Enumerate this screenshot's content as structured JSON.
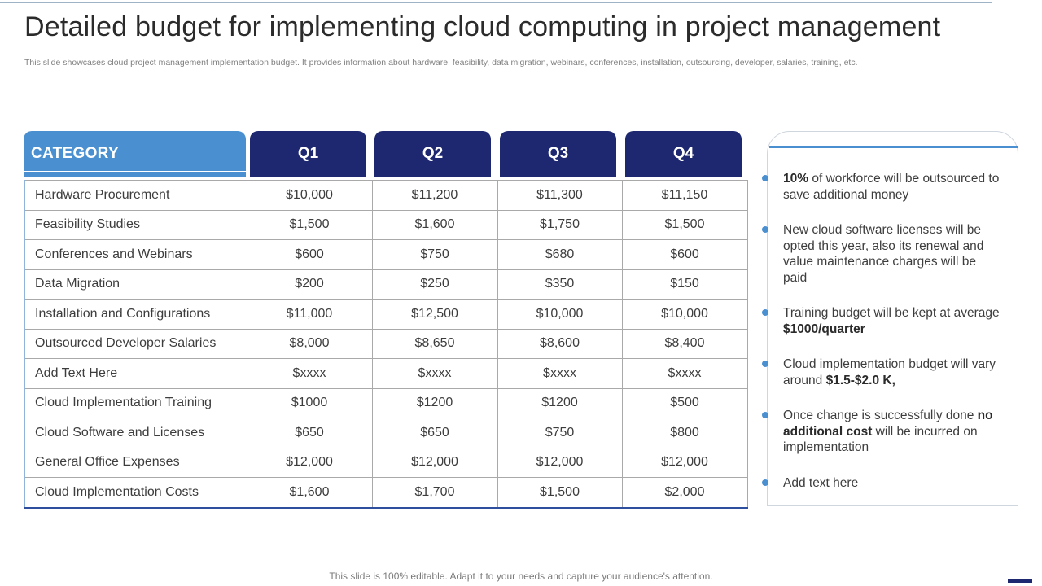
{
  "title": "Detailed budget for implementing cloud computing in project management",
  "subtitle": "This slide showcases cloud project management implementation budget. It provides information about hardware, feasibility, data migration, webinars, conferences, installation, outsourcing, developer, salaries, training, etc.",
  "table": {
    "headers": [
      "CATEGORY",
      "Q1",
      "Q2",
      "Q3",
      "Q4"
    ],
    "rows": [
      [
        "Hardware Procurement",
        "$10,000",
        "$11,200",
        "$11,300",
        "$11,150"
      ],
      [
        "Feasibility Studies",
        "$1,500",
        "$1,600",
        "$1,750",
        "$1,500"
      ],
      [
        "Conferences and Webinars",
        "$600",
        "$750",
        "$680",
        "$600"
      ],
      [
        "Data Migration",
        "$200",
        "$250",
        "$350",
        "$150"
      ],
      [
        "Installation  and Configurations",
        "$11,000",
        "$12,500",
        "$10,000",
        "$10,000"
      ],
      [
        "Outsourced  Developer Salaries",
        "$8,000",
        "$8,650",
        "$8,600",
        "$8,400"
      ],
      [
        "Add Text Here",
        "$xxxx",
        "$xxxx",
        "$xxxx",
        "$xxxx"
      ],
      [
        "Cloud Implementation  Training",
        "$1000",
        "$1200",
        "$1200",
        "$500"
      ],
      [
        "Cloud Software and Licenses",
        "$650",
        "$650",
        "$750",
        "$800"
      ],
      [
        "General Office Expenses",
        "$12,000",
        "$12,000",
        "$12,000",
        "$12,000"
      ],
      [
        "Cloud Implementation  Costs",
        "$1,600",
        "$1,700",
        "$1,500",
        "$2,000"
      ]
    ]
  },
  "notes": [
    {
      "pre": "",
      "bold": "10%",
      "post": " of workforce will be outsourced to save additional money"
    },
    {
      "pre": "New cloud software licenses will be opted this year, also its renewal and value maintenance charges will be paid",
      "bold": "",
      "post": ""
    },
    {
      "pre": "Training budget will be kept at average ",
      "bold": "$1000/quarter",
      "post": ""
    },
    {
      "pre": "Cloud implementation budget will vary around ",
      "bold": "$1.5-$2.0 K,",
      "post": ""
    },
    {
      "pre": "Once change is successfully  done ",
      "bold": "no additional cost",
      "post": " will be incurred on implementation"
    },
    {
      "pre": "Add text here",
      "bold": "",
      "post": ""
    }
  ],
  "footer": "This slide is 100% editable. Adapt it to your needs and capture your audience's attention.",
  "colors": {
    "accent_blue": "#4a90d0",
    "navy": "#1d2870"
  }
}
